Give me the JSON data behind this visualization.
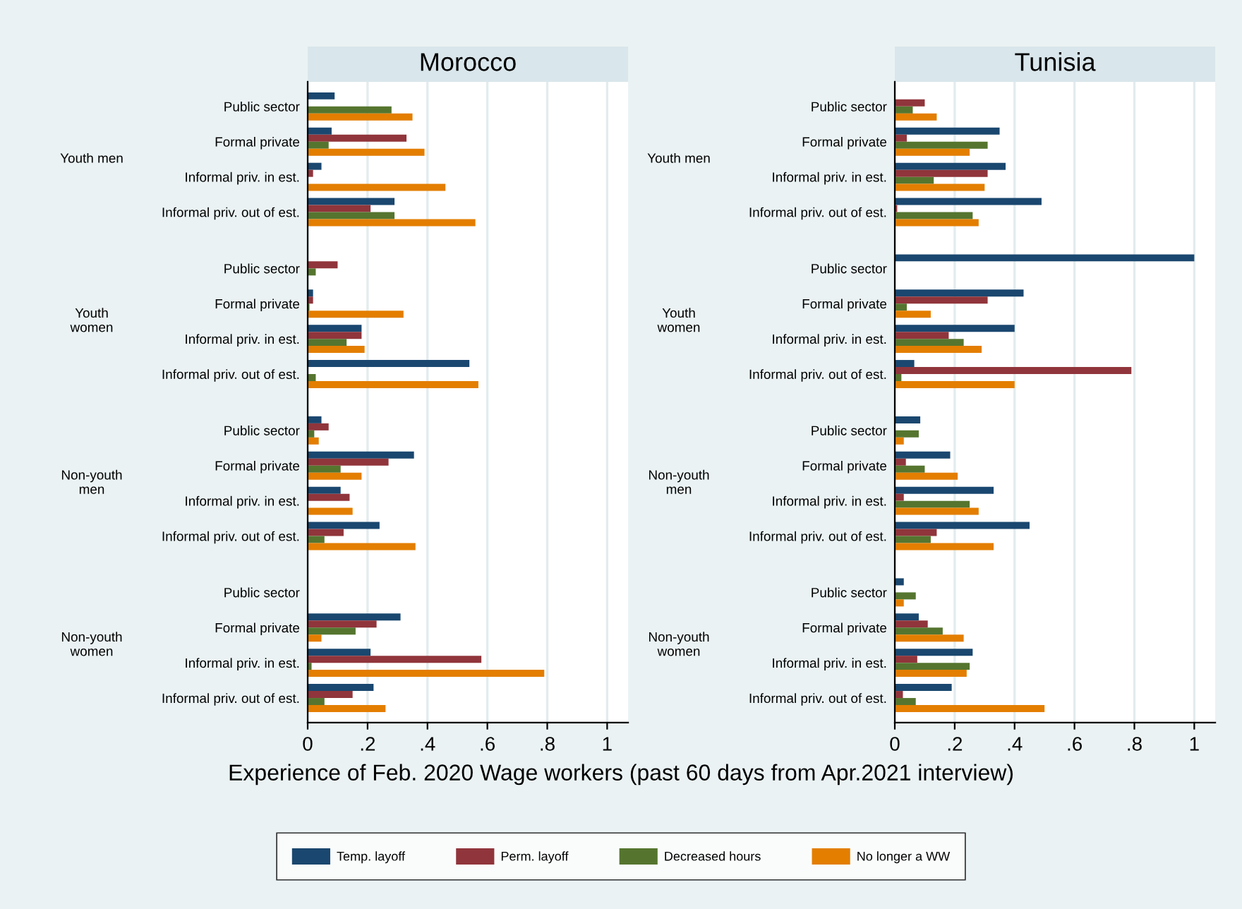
{
  "chart_data": [
    {
      "type": "bar",
      "orientation": "horizontal",
      "title": "Morocco",
      "xlabel": "Experience of Feb. 2020 Wage workers (past 60 days from Apr.2021 interview)",
      "categories": [
        "Public sector",
        "Formal private",
        "Informal priv. in est.",
        "Informal priv. out of est.",
        "Public sector",
        "Formal private",
        "Informal priv. in est.",
        "Informal priv. out of est.",
        "Public sector",
        "Formal private",
        "Informal priv. in est.",
        "Informal priv. out of est.",
        "Public sector",
        "Formal private",
        "Informal priv. in est.",
        "Informal priv. out of est."
      ],
      "annotations": [
        "Youth men",
        "Youth women",
        "Non-youth men",
        "Non-youth women"
      ],
      "series": [
        {
          "name": "Temp. layoff",
          "color": "#1a476f",
          "values": [
            0.09,
            0.08,
            0.046,
            0.29,
            0,
            0.018,
            0.18,
            0.54,
            0.046,
            0.355,
            0.11,
            0.24,
            null,
            0.31,
            0.21,
            0.22
          ]
        },
        {
          "name": "Perm. layoff",
          "color": "#90353b",
          "values": [
            0,
            0.33,
            0.018,
            0.21,
            0.1,
            0.018,
            0.18,
            0,
            0.07,
            0.27,
            0.14,
            0.12,
            null,
            0.23,
            0.58,
            0.15
          ]
        },
        {
          "name": "Decreased hours",
          "color": "#55752f",
          "values": [
            0.28,
            0.07,
            0,
            0.29,
            0.027,
            0.006,
            0.13,
            0.027,
            0.022,
            0.11,
            0,
            0.056,
            null,
            0.16,
            0.013,
            0.056
          ]
        },
        {
          "name": "No longer a WW",
          "color": "#e37e00",
          "values": [
            0.35,
            0.39,
            0.46,
            0.56,
            0,
            0.32,
            0.19,
            0.57,
            0.037,
            0.18,
            0.15,
            0.36,
            null,
            0.046,
            0.79,
            0.26
          ]
        }
      ],
      "xlim": [
        0,
        1.07
      ],
      "xticks": [
        0,
        {
          "value": 0.2,
          "label": ".2"
        },
        {
          "value": 0.4,
          "label": ".4"
        },
        {
          "value": 0.6,
          "label": ".6"
        },
        {
          "value": 0.8,
          "label": ".8"
        },
        1
      ],
      "grid": "x",
      "legend": "bottom"
    },
    {
      "type": "bar",
      "orientation": "horizontal",
      "title": "Tunisia",
      "categories": [
        "Public sector",
        "Formal private",
        "Informal priv. in est.",
        "Informal priv. out of est.",
        "Public sector",
        "Formal private",
        "Informal priv. in est.",
        "Informal priv. out of est.",
        "Public sector",
        "Formal private",
        "Informal priv. in est.",
        "Informal priv. out of est.",
        "Public sector",
        "Formal private",
        "Informal priv. in est.",
        "Informal priv. out of est."
      ],
      "annotations": [
        "Youth men",
        "Youth women",
        "Non-youth men",
        "Non-youth women"
      ],
      "series": [
        {
          "color": "#1a476f",
          "values": [
            0,
            0.35,
            0.37,
            0.49,
            1.0,
            0.43,
            0.4,
            0.065,
            0.085,
            0.185,
            0.33,
            0.45,
            0.03,
            0.08,
            0.26,
            0.19
          ]
        },
        {
          "color": "#90353b",
          "values": [
            0.1,
            0.04,
            0.31,
            0.008,
            0,
            0.31,
            0.18,
            0.79,
            0,
            0.037,
            0.03,
            0.14,
            0,
            0.11,
            0.075,
            0.027
          ]
        },
        {
          "color": "#55752f",
          "values": [
            0.06,
            0.31,
            0.13,
            0.26,
            0,
            0.04,
            0.23,
            0.022,
            0.08,
            0.1,
            0.25,
            0.12,
            0.07,
            0.16,
            0.25,
            0.07
          ]
        },
        {
          "color": "#e37e00",
          "values": [
            0.14,
            0.25,
            0.3,
            0.28,
            0,
            0.12,
            0.29,
            0.4,
            0.03,
            0.21,
            0.28,
            0.33,
            0.03,
            0.23,
            0.24,
            0.5
          ]
        }
      ],
      "xlim": [
        0,
        1.07
      ],
      "xticks": [
        0,
        {
          "value": 0.2,
          "label": ".2"
        },
        {
          "value": 0.4,
          "label": ".4"
        },
        {
          "value": 0.6,
          "label": ".6"
        },
        {
          "value": 0.8,
          "label": ".8"
        },
        1
      ],
      "grid": "x"
    }
  ]
}
